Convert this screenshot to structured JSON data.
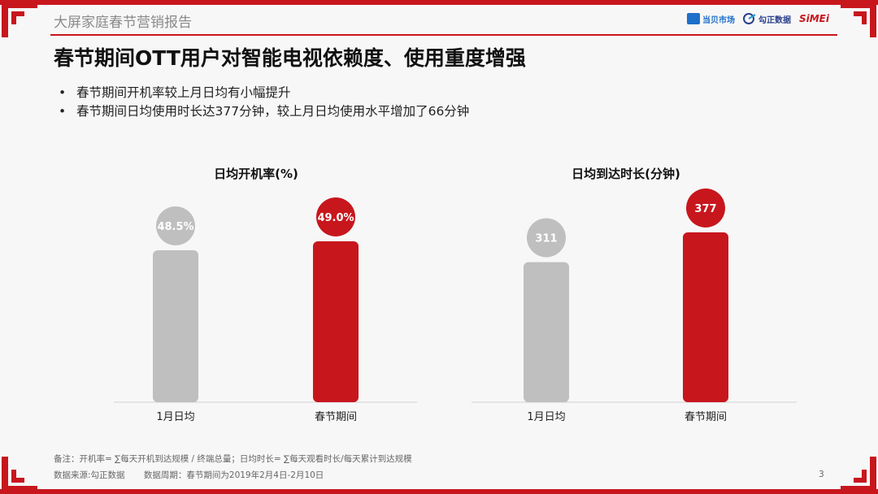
{
  "header": {
    "report_title": "大屏家庭春节营销报告",
    "slide_title": "春节期间OTT用户对智能电视依赖度、使用重度增强",
    "logos": [
      {
        "name": "当贝市场",
        "icon": "dangbei-logo"
      },
      {
        "name": "勾正数据",
        "icon": "gozen-logo"
      },
      {
        "name": "SiMEi",
        "icon": "simei-logo"
      }
    ]
  },
  "bullets": [
    "春节期间开机率较上月日均有小幅提升",
    "春节期间日均使用时长达377分钟，较上月日均使用水平增加了66分钟"
  ],
  "chart_data": [
    {
      "type": "bar",
      "title": "日均开机率(%)",
      "categories": [
        "1月日均",
        "春节期间"
      ],
      "values": [
        48.5,
        49.0
      ],
      "value_labels": [
        "48.5%",
        "49.0%"
      ],
      "colors": [
        "#bfbfbf",
        "#c8161d"
      ]
    },
    {
      "type": "bar",
      "title": "日均到达时长(分钟)",
      "categories": [
        "1月日均",
        "春节期间"
      ],
      "values": [
        311,
        377
      ],
      "value_labels": [
        "311",
        "377"
      ],
      "colors": [
        "#bfbfbf",
        "#c8161d"
      ]
    }
  ],
  "footer": {
    "note": "备注：开机率= ∑每天开机到达规模 / 终端总量；日均时长= ∑每天观看时长/每天累计到达规模",
    "source": "数据来源:勾正数据",
    "period": "数据周期：春节期间为2019年2月4日-2月10日",
    "page": "3"
  },
  "colors": {
    "accent": "#c8161d",
    "neutral_bar": "#bfbfbf"
  }
}
